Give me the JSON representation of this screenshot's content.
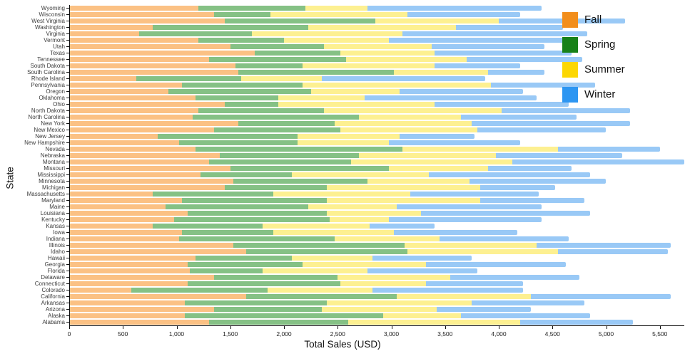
{
  "axes": {
    "x_label": "Total Sales (USD)",
    "y_label": "State",
    "x_ticks": [
      {
        "value": 0,
        "label": "0"
      },
      {
        "value": 500,
        "label": "500"
      },
      {
        "value": 1000,
        "label": "1,000"
      },
      {
        "value": 1500,
        "label": "1,500"
      },
      {
        "value": 2000,
        "label": "2,000"
      },
      {
        "value": 2500,
        "label": "2,500"
      },
      {
        "value": 3000,
        "label": "3,000"
      },
      {
        "value": 3500,
        "label": "3,500"
      },
      {
        "value": 4000,
        "label": "4,000"
      },
      {
        "value": 4500,
        "label": "4,500"
      },
      {
        "value": 5000,
        "label": "5,000"
      },
      {
        "value": 5500,
        "label": "5,500"
      }
    ]
  },
  "legend": {
    "items": [
      {
        "label": "Fall",
        "color": "#F28E1C"
      },
      {
        "label": "Spring",
        "color": "#178117"
      },
      {
        "label": "Summer",
        "color": "#FCD703"
      },
      {
        "label": "Winter",
        "color": "#2D96F2"
      }
    ]
  },
  "chart_data": {
    "type": "bar",
    "stacked": true,
    "orientation": "horizontal",
    "title": "",
    "xlabel": "Total Sales (USD)",
    "ylabel": "State",
    "xlim": [
      0,
      5750
    ],
    "grid": false,
    "legend_position": "top-right",
    "categories": [
      "Wyoming",
      "Wisconsin",
      "West Virginia",
      "Washington",
      "Virginia",
      "Vermont",
      "Utah",
      "Texas",
      "Tennessee",
      "South Dakota",
      "South Carolina",
      "Rhode Island",
      "Pennsylvania",
      "Oregon",
      "Oklahoma",
      "Ohio",
      "North Dakota",
      "North Carolina",
      "New York",
      "New Mexico",
      "New Jersey",
      "New Hampshire",
      "Nevada",
      "Nebraska",
      "Montana",
      "Missouri",
      "Mississippi",
      "Minnesota",
      "Michigan",
      "Massachusetts",
      "Maryland",
      "Maine",
      "Louisiana",
      "Kentucky",
      "Kansas",
      "Iowa",
      "Indiana",
      "Illinois",
      "Idaho",
      "Hawaii",
      "Georgia",
      "Florida",
      "Delaware",
      "Connecticut",
      "Colorado",
      "California",
      "Arkansas",
      "Arizona",
      "Alaska",
      "Alabama"
    ],
    "series": [
      {
        "name": "Fall",
        "solid_color": "#F28E1C",
        "fill_color": "#FBC184",
        "values": [
          1200,
          1350,
          1450,
          775,
          650,
          1200,
          1500,
          1725,
          1300,
          1550,
          1575,
          625,
          1050,
          925,
          1175,
          1450,
          1200,
          1150,
          1575,
          1350,
          825,
          1025,
          1175,
          1400,
          1300,
          1500,
          1225,
          1525,
          1450,
          775,
          1050,
          900,
          1100,
          975,
          775,
          1050,
          1025,
          1525,
          1650,
          1175,
          1100,
          1125,
          1350,
          1100,
          575,
          1650,
          1075,
          1350,
          1075,
          1300
        ]
      },
      {
        "name": "Spring",
        "solid_color": "#178117",
        "fill_color": "#85C185",
        "values": [
          1000,
          525,
          1400,
          1450,
          1050,
          800,
          875,
          800,
          1275,
          625,
          1450,
          975,
          1125,
          1325,
          775,
          500,
          1175,
          1550,
          900,
          1175,
          1300,
          1100,
          1925,
          1300,
          1325,
          1475,
          850,
          1250,
          950,
          1125,
          1350,
          1325,
          1300,
          1450,
          1025,
          850,
          1450,
          1600,
          1500,
          900,
          1075,
          675,
          1150,
          1425,
          1275,
          1400,
          1325,
          1000,
          1850,
          1300
        ]
      },
      {
        "name": "Summer",
        "solid_color": "#FCD703",
        "fill_color": "#FDF091",
        "values": [
          575,
          1275,
          1150,
          1375,
          1400,
          975,
          1000,
          875,
          1125,
          1225,
          875,
          750,
          1750,
          825,
          800,
          1450,
          1650,
          950,
          1275,
          1275,
          950,
          850,
          1450,
          1275,
          1500,
          925,
          1275,
          950,
          1425,
          1275,
          1425,
          825,
          875,
          550,
          1000,
          1125,
          975,
          1225,
          1400,
          750,
          1150,
          975,
          1050,
          800,
          975,
          1250,
          1350,
          1075,
          725,
          1600
        ]
      },
      {
        "name": "Winter",
        "solid_color": "#2D96F2",
        "fill_color": "#99C9F6",
        "values": [
          1625,
          1050,
          1175,
          1000,
          1725,
          1725,
          1050,
          1275,
          1075,
          800,
          525,
          1525,
          975,
          1150,
          1600,
          1250,
          1200,
          1075,
          1475,
          1200,
          700,
          1225,
          950,
          1175,
          1600,
          775,
          1500,
          1275,
          700,
          1200,
          975,
          1350,
          1575,
          1425,
          600,
          1150,
          1200,
          1250,
          1025,
          925,
          1300,
          1025,
          1200,
          900,
          1400,
          1300,
          1050,
          875,
          1200,
          1050
        ]
      }
    ]
  }
}
